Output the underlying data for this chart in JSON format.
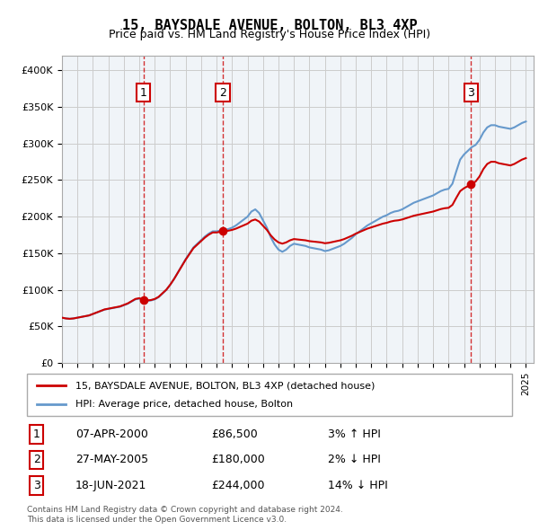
{
  "title": "15, BAYSDALE AVENUE, BOLTON, BL3 4XP",
  "subtitle": "Price paid vs. HM Land Registry's House Price Index (HPI)",
  "ylabel_ticks": [
    "£0",
    "£50K",
    "£100K",
    "£150K",
    "£200K",
    "£250K",
    "£300K",
    "£350K",
    "£400K"
  ],
  "ytick_values": [
    0,
    50000,
    100000,
    150000,
    200000,
    250000,
    300000,
    350000,
    400000
  ],
  "ylim": [
    0,
    420000
  ],
  "xlim_start": 1995.0,
  "xlim_end": 2025.5,
  "sale_color": "#cc0000",
  "hpi_color": "#6699cc",
  "vline_color": "#cc0000",
  "vline_style": "dashed",
  "background_color": "#ffffff",
  "grid_color": "#cccccc",
  "annotation_box_color": "#cc0000",
  "sale_marker_color": "#cc0000",
  "transactions": [
    {
      "num": 1,
      "date": "07-APR-2000",
      "price": 86500,
      "pct": "3%",
      "dir": "↑",
      "year": 2000.27
    },
    {
      "num": 2,
      "date": "27-MAY-2005",
      "price": 180000,
      "pct": "2%",
      "dir": "↓",
      "year": 2005.4
    },
    {
      "num": 3,
      "date": "18-JUN-2021",
      "price": 244000,
      "pct": "14%",
      "dir": "↓",
      "year": 2021.45
    }
  ],
  "legend_label_sale": "15, BAYSDALE AVENUE, BOLTON, BL3 4XP (detached house)",
  "legend_label_hpi": "HPI: Average price, detached house, Bolton",
  "footer": "Contains HM Land Registry data © Crown copyright and database right 2024.\nThis data is licensed under the Open Government Licence v3.0.",
  "hpi_data_x": [
    1995.0,
    1995.25,
    1995.5,
    1995.75,
    1996.0,
    1996.25,
    1996.5,
    1996.75,
    1997.0,
    1997.25,
    1997.5,
    1997.75,
    1998.0,
    1998.25,
    1998.5,
    1998.75,
    1999.0,
    1999.25,
    1999.5,
    1999.75,
    2000.0,
    2000.25,
    2000.5,
    2000.75,
    2001.0,
    2001.25,
    2001.5,
    2001.75,
    2002.0,
    2002.25,
    2002.5,
    2002.75,
    2003.0,
    2003.25,
    2003.5,
    2003.75,
    2004.0,
    2004.25,
    2004.5,
    2004.75,
    2005.0,
    2005.25,
    2005.5,
    2005.75,
    2006.0,
    2006.25,
    2006.5,
    2006.75,
    2007.0,
    2007.25,
    2007.5,
    2007.75,
    2008.0,
    2008.25,
    2008.5,
    2008.75,
    2009.0,
    2009.25,
    2009.5,
    2009.75,
    2010.0,
    2010.25,
    2010.5,
    2010.75,
    2011.0,
    2011.25,
    2011.5,
    2011.75,
    2012.0,
    2012.25,
    2012.5,
    2012.75,
    2013.0,
    2013.25,
    2013.5,
    2013.75,
    2014.0,
    2014.25,
    2014.5,
    2014.75,
    2015.0,
    2015.25,
    2015.5,
    2015.75,
    2016.0,
    2016.25,
    2016.5,
    2016.75,
    2017.0,
    2017.25,
    2017.5,
    2017.75,
    2018.0,
    2018.25,
    2018.5,
    2018.75,
    2019.0,
    2019.25,
    2019.5,
    2019.75,
    2020.0,
    2020.25,
    2020.5,
    2020.75,
    2021.0,
    2021.25,
    2021.5,
    2021.75,
    2022.0,
    2022.25,
    2022.5,
    2022.75,
    2023.0,
    2023.25,
    2023.5,
    2023.75,
    2024.0,
    2024.25,
    2024.5,
    2024.75,
    2025.0
  ],
  "hpi_data_y": [
    62000,
    61000,
    60500,
    61000,
    62000,
    63000,
    64000,
    65000,
    67000,
    69000,
    71000,
    73000,
    74000,
    75000,
    76000,
    77000,
    79000,
    81000,
    84000,
    87000,
    88000,
    86000,
    85000,
    85500,
    87000,
    90000,
    95000,
    100000,
    107000,
    115000,
    124000,
    133000,
    142000,
    150000,
    158000,
    163000,
    168000,
    173000,
    177000,
    180000,
    180000,
    181000,
    182000,
    183000,
    185000,
    188000,
    192000,
    196000,
    200000,
    207000,
    210000,
    205000,
    195000,
    185000,
    172000,
    162000,
    155000,
    152000,
    155000,
    160000,
    163000,
    162000,
    161000,
    160000,
    158000,
    157000,
    156000,
    155000,
    153000,
    154000,
    156000,
    158000,
    160000,
    163000,
    167000,
    171000,
    176000,
    180000,
    184000,
    188000,
    191000,
    194000,
    197000,
    200000,
    202000,
    205000,
    207000,
    208000,
    210000,
    213000,
    216000,
    219000,
    221000,
    223000,
    225000,
    227000,
    229000,
    232000,
    235000,
    237000,
    238000,
    245000,
    262000,
    278000,
    285000,
    290000,
    295000,
    298000,
    305000,
    315000,
    322000,
    325000,
    325000,
    323000,
    322000,
    321000,
    320000,
    322000,
    325000,
    328000,
    330000
  ],
  "sale_data_x": [
    1995.0,
    2000.27,
    2005.4,
    2021.45,
    2025.0
  ],
  "sale_data_y": [
    62000,
    86500,
    180000,
    244000,
    280000
  ]
}
